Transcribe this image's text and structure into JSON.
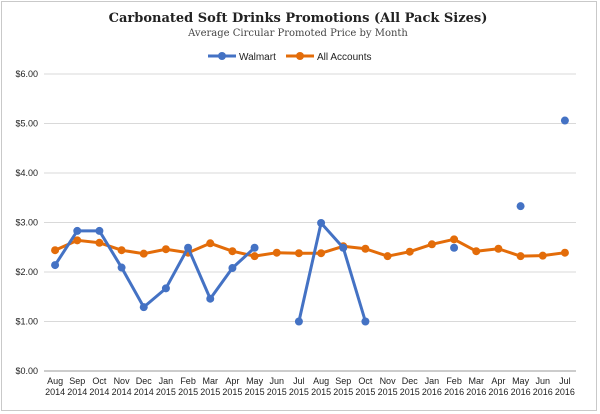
{
  "chart_data": {
    "type": "line",
    "title": "Carbonated Soft Drinks Promotions (All Pack Sizes)",
    "subtitle": "Average Circular Promoted Price by Month",
    "xlabel": "",
    "ylabel": "",
    "ylim": [
      0,
      6
    ],
    "yticks": [
      "$0.00",
      "$1.00",
      "$2.00",
      "$3.00",
      "$4.00",
      "$5.00",
      "$6.00"
    ],
    "grid": true,
    "legend_position": "top-center",
    "categories": [
      {
        "month": "Aug",
        "year": "2014"
      },
      {
        "month": "Sep",
        "year": "2014"
      },
      {
        "month": "Oct",
        "year": "2014"
      },
      {
        "month": "Nov",
        "year": "2014"
      },
      {
        "month": "Dec",
        "year": "2014"
      },
      {
        "month": "Jan",
        "year": "2015"
      },
      {
        "month": "Feb",
        "year": "2015"
      },
      {
        "month": "Mar",
        "year": "2015"
      },
      {
        "month": "Apr",
        "year": "2015"
      },
      {
        "month": "May",
        "year": "2015"
      },
      {
        "month": "Jun",
        "year": "2015"
      },
      {
        "month": "Jul",
        "year": "2015"
      },
      {
        "month": "Aug",
        "year": "2015"
      },
      {
        "month": "Sep",
        "year": "2015"
      },
      {
        "month": "Oct",
        "year": "2015"
      },
      {
        "month": "Nov",
        "year": "2015"
      },
      {
        "month": "Dec",
        "year": "2015"
      },
      {
        "month": "Jan",
        "year": "2016"
      },
      {
        "month": "Feb",
        "year": "2016"
      },
      {
        "month": "Mar",
        "year": "2016"
      },
      {
        "month": "Apr",
        "year": "2016"
      },
      {
        "month": "May",
        "year": "2016"
      },
      {
        "month": "Jun",
        "year": "2016"
      },
      {
        "month": "Jul",
        "year": "2016"
      }
    ],
    "series": [
      {
        "name": "Walmart",
        "color": "#4472c4",
        "values": [
          2.14,
          2.83,
          2.83,
          2.09,
          1.29,
          1.67,
          2.49,
          1.46,
          2.08,
          2.49,
          null,
          1.0,
          2.99,
          2.49,
          1.0,
          null,
          null,
          null,
          2.49,
          null,
          null,
          3.33,
          null,
          5.06
        ]
      },
      {
        "name": "All Accounts",
        "color": "#e36c09",
        "values": [
          2.44,
          2.64,
          2.59,
          2.44,
          2.37,
          2.46,
          2.39,
          2.58,
          2.42,
          2.32,
          2.39,
          2.38,
          2.38,
          2.52,
          2.47,
          2.32,
          2.41,
          2.56,
          2.66,
          2.42,
          2.47,
          2.32,
          2.33,
          2.39
        ]
      }
    ]
  }
}
